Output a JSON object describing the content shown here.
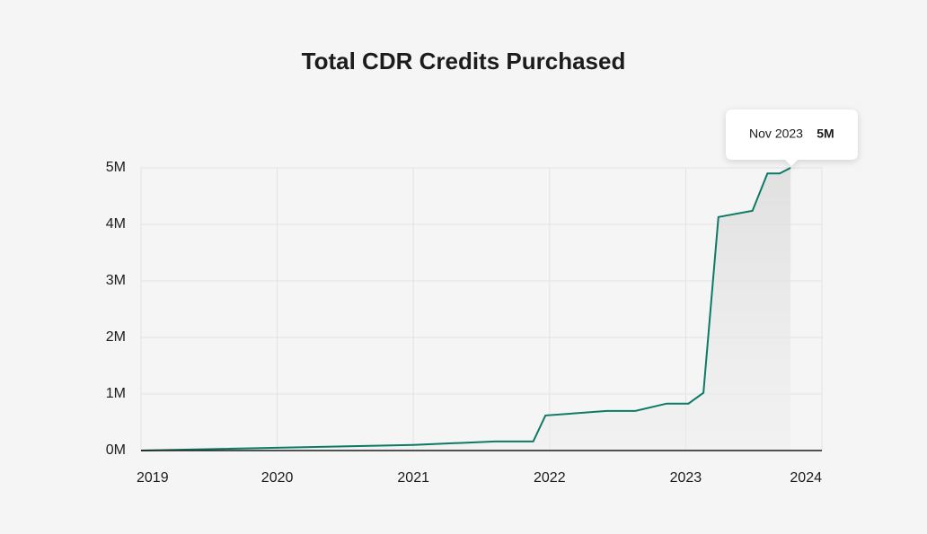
{
  "chart_data": {
    "type": "area-line",
    "title": "Total CDR Credits Purchased",
    "x": [
      2019,
      2021,
      2021.6,
      2021.88,
      2021.97,
      2022.42,
      2022.63,
      2022.86,
      2023.02,
      2023.13,
      2023.24,
      2023.49,
      2023.6,
      2023.69,
      2023.77
    ],
    "series": [
      {
        "color": "#0d7a65",
        "values": [
          0,
          100000,
          160000,
          160000,
          620000,
          700000,
          700000,
          830000,
          830000,
          1020000,
          4130000,
          4240000,
          4900000,
          4900000,
          5000000
        ]
      }
    ],
    "xlim": [
      2019,
      2024
    ],
    "xticks": [
      2019,
      2020,
      2021,
      2022,
      2023,
      2024
    ],
    "ylim": [
      0,
      5000000
    ],
    "yticks": [
      {
        "value": 0,
        "label": "0M"
      },
      {
        "value": 1000000,
        "label": "1M"
      },
      {
        "value": 2000000,
        "label": "2M"
      },
      {
        "value": 3000000,
        "label": "3M"
      },
      {
        "value": 4000000,
        "label": "4M"
      },
      {
        "value": 5000000,
        "label": "5M"
      }
    ],
    "grid": true,
    "tooltip": {
      "date": "Nov 2023",
      "value": 5000000,
      "value_label": "5M"
    }
  }
}
